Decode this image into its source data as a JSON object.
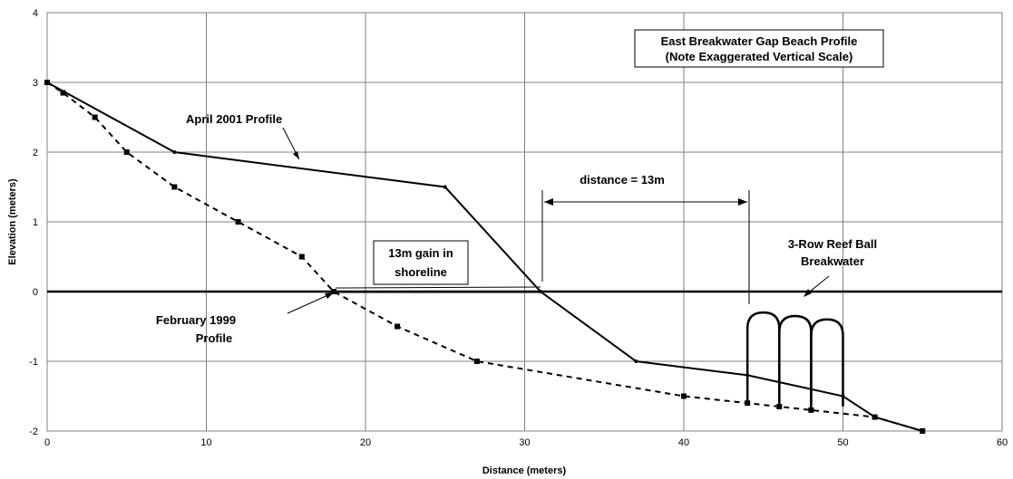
{
  "chart_data": {
    "type": "line",
    "title": "",
    "xlabel": "Distance (meters)",
    "ylabel": "Elevation (meters)",
    "xlim": [
      0,
      60
    ],
    "ylim": [
      -2,
      4
    ],
    "x_ticks": [
      "0",
      "10",
      "20",
      "30",
      "40",
      "50",
      "60"
    ],
    "y_ticks": [
      "-2",
      "-1",
      "0",
      "1",
      "2",
      "3",
      "4"
    ],
    "grid": true,
    "legend": "none",
    "series": [
      {
        "style": "solid",
        "color": "#000000",
        "points": [
          [
            0,
            3
          ],
          [
            8,
            2
          ],
          [
            25,
            1.5
          ],
          [
            31,
            0
          ],
          [
            37,
            -1
          ],
          [
            44,
            -1.2
          ],
          [
            50,
            -1.5
          ],
          [
            52,
            -1.8
          ],
          [
            55,
            -2
          ]
        ]
      },
      {
        "style": "dashed",
        "color": "#000000",
        "points": [
          [
            0,
            3
          ],
          [
            1,
            2.85
          ],
          [
            3,
            2.5
          ],
          [
            5,
            2
          ],
          [
            8,
            1.5
          ],
          [
            12,
            1
          ],
          [
            16,
            0.5
          ],
          [
            18,
            0
          ],
          [
            22,
            -0.5
          ],
          [
            27,
            -1
          ],
          [
            40,
            -1.5
          ],
          [
            44,
            -1.6
          ],
          [
            46,
            -1.65
          ],
          [
            48,
            -1.7
          ],
          [
            52,
            -1.8
          ],
          [
            55,
            -2
          ]
        ]
      }
    ],
    "annotations": {
      "title_line1": "East Breakwater Gap Beach Profile",
      "title_line2": "(Note Exaggerated Vertical Scale)",
      "april_label": "April 2001 Profile",
      "feb_label_line1": "February 1999",
      "feb_label_line2": "Profile",
      "distance_label": "distance = 13m",
      "gain_line1": "13m gain in",
      "gain_line2": "shoreline",
      "reef_line1": "3-Row Reef Ball",
      "reef_line2": "Breakwater"
    }
  }
}
